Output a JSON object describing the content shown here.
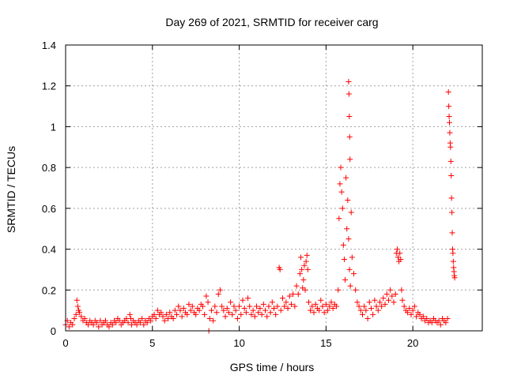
{
  "chart_data": {
    "type": "scatter",
    "title": "Day 269 of 2021, SRMTID for receiver carg",
    "xlabel": "GPS time / hours",
    "ylabel": "SRMTID / TECUs",
    "xlim": [
      0,
      24
    ],
    "ylim": [
      0,
      1.4
    ],
    "xticks": [
      0,
      5,
      10,
      15,
      20
    ],
    "xtick_labels": [
      "0",
      "5",
      "10",
      "15",
      "20"
    ],
    "yticks": [
      0,
      0.2,
      0.4,
      0.6,
      0.8,
      1.0,
      1.2,
      1.4
    ],
    "ytick_labels": [
      "0",
      "0.2",
      "0.4",
      "0.6",
      "0.8",
      "1",
      "1.2",
      "1.4"
    ],
    "grid": true,
    "marker": "+",
    "series": [
      {
        "name": "SRMTID",
        "color": "#ff0000",
        "points": [
          [
            0.0,
            0.03
          ],
          [
            0.1,
            0.05
          ],
          [
            0.2,
            0.02
          ],
          [
            0.3,
            0.04
          ],
          [
            0.4,
            0.03
          ],
          [
            0.5,
            0.06
          ],
          [
            0.6,
            0.08
          ],
          [
            0.65,
            0.15
          ],
          [
            0.7,
            0.12
          ],
          [
            0.75,
            0.1
          ],
          [
            0.8,
            0.09
          ],
          [
            0.9,
            0.07
          ],
          [
            1.0,
            0.05
          ],
          [
            1.1,
            0.06
          ],
          [
            1.2,
            0.04
          ],
          [
            1.3,
            0.03
          ],
          [
            1.4,
            0.05
          ],
          [
            1.5,
            0.04
          ],
          [
            1.6,
            0.03
          ],
          [
            1.7,
            0.05
          ],
          [
            1.8,
            0.04
          ],
          [
            1.9,
            0.02
          ],
          [
            2.0,
            0.05
          ],
          [
            2.1,
            0.03
          ],
          [
            2.2,
            0.04
          ],
          [
            2.3,
            0.05
          ],
          [
            2.4,
            0.03
          ],
          [
            2.5,
            0.02
          ],
          [
            2.6,
            0.04
          ],
          [
            2.7,
            0.03
          ],
          [
            2.8,
            0.05
          ],
          [
            2.9,
            0.04
          ],
          [
            3.0,
            0.06
          ],
          [
            3.1,
            0.05
          ],
          [
            3.2,
            0.03
          ],
          [
            3.3,
            0.04
          ],
          [
            3.4,
            0.05
          ],
          [
            3.5,
            0.06
          ],
          [
            3.6,
            0.04
          ],
          [
            3.7,
            0.08
          ],
          [
            3.75,
            0.06
          ],
          [
            3.8,
            0.03
          ],
          [
            3.9,
            0.05
          ],
          [
            4.0,
            0.04
          ],
          [
            4.1,
            0.03
          ],
          [
            4.2,
            0.05
          ],
          [
            4.3,
            0.04
          ],
          [
            4.4,
            0.06
          ],
          [
            4.5,
            0.03
          ],
          [
            4.6,
            0.05
          ],
          [
            4.7,
            0.04
          ],
          [
            4.8,
            0.06
          ],
          [
            4.9,
            0.05
          ],
          [
            5.0,
            0.07
          ],
          [
            5.1,
            0.08
          ],
          [
            5.2,
            0.06
          ],
          [
            5.3,
            0.1
          ],
          [
            5.4,
            0.08
          ],
          [
            5.5,
            0.09
          ],
          [
            5.6,
            0.07
          ],
          [
            5.7,
            0.05
          ],
          [
            5.8,
            0.08
          ],
          [
            5.9,
            0.06
          ],
          [
            6.0,
            0.09
          ],
          [
            6.1,
            0.07
          ],
          [
            6.2,
            0.06
          ],
          [
            6.3,
            0.1
          ],
          [
            6.4,
            0.08
          ],
          [
            6.5,
            0.12
          ],
          [
            6.6,
            0.1
          ],
          [
            6.7,
            0.07
          ],
          [
            6.8,
            0.11
          ],
          [
            6.9,
            0.09
          ],
          [
            7.0,
            0.08
          ],
          [
            7.1,
            0.13
          ],
          [
            7.2,
            0.1
          ],
          [
            7.3,
            0.12
          ],
          [
            7.4,
            0.09
          ],
          [
            7.5,
            0.08
          ],
          [
            7.6,
            0.11
          ],
          [
            7.7,
            0.1
          ],
          [
            7.8,
            0.13
          ],
          [
            7.9,
            0.12
          ],
          [
            8.0,
            0.08
          ],
          [
            8.1,
            0.17
          ],
          [
            8.2,
            0.14
          ],
          [
            8.25,
            0.0
          ],
          [
            8.3,
            0.06
          ],
          [
            8.4,
            0.1
          ],
          [
            8.5,
            0.05
          ],
          [
            8.6,
            0.12
          ],
          [
            8.7,
            0.09
          ],
          [
            8.8,
            0.18
          ],
          [
            8.9,
            0.2
          ],
          [
            9.0,
            0.12
          ],
          [
            9.1,
            0.1
          ],
          [
            9.2,
            0.07
          ],
          [
            9.3,
            0.11
          ],
          [
            9.4,
            0.09
          ],
          [
            9.5,
            0.14
          ],
          [
            9.6,
            0.08
          ],
          [
            9.7,
            0.12
          ],
          [
            9.8,
            0.1
          ],
          [
            9.9,
            0.06
          ],
          [
            10.0,
            0.12
          ],
          [
            10.1,
            0.08
          ],
          [
            10.2,
            0.15
          ],
          [
            10.3,
            0.11
          ],
          [
            10.4,
            0.09
          ],
          [
            10.5,
            0.16
          ],
          [
            10.6,
            0.12
          ],
          [
            10.7,
            0.08
          ],
          [
            10.8,
            0.1
          ],
          [
            10.9,
            0.07
          ],
          [
            11.0,
            0.12
          ],
          [
            11.1,
            0.09
          ],
          [
            11.2,
            0.11
          ],
          [
            11.3,
            0.08
          ],
          [
            11.4,
            0.13
          ],
          [
            11.5,
            0.1
          ],
          [
            11.6,
            0.07
          ],
          [
            11.7,
            0.12
          ],
          [
            11.8,
            0.09
          ],
          [
            11.9,
            0.14
          ],
          [
            12.0,
            0.11
          ],
          [
            12.1,
            0.08
          ],
          [
            12.2,
            0.12
          ],
          [
            12.3,
            0.31
          ],
          [
            12.35,
            0.3
          ],
          [
            12.4,
            0.1
          ],
          [
            12.5,
            0.16
          ],
          [
            12.6,
            0.12
          ],
          [
            12.7,
            0.14
          ],
          [
            12.8,
            0.11
          ],
          [
            12.9,
            0.17
          ],
          [
            13.0,
            0.13
          ],
          [
            13.1,
            0.18
          ],
          [
            13.2,
            0.12
          ],
          [
            13.3,
            0.22
          ],
          [
            13.4,
            0.18
          ],
          [
            13.5,
            0.28
          ],
          [
            13.55,
            0.36
          ],
          [
            13.6,
            0.3
          ],
          [
            13.65,
            0.21
          ],
          [
            13.7,
            0.25
          ],
          [
            13.75,
            0.32
          ],
          [
            13.8,
            0.2
          ],
          [
            13.85,
            0.34
          ],
          [
            13.9,
            0.37
          ],
          [
            13.95,
            0.3
          ],
          [
            14.0,
            0.14
          ],
          [
            14.1,
            0.1
          ],
          [
            14.2,
            0.12
          ],
          [
            14.3,
            0.09
          ],
          [
            14.4,
            0.13
          ],
          [
            14.5,
            0.11
          ],
          [
            14.6,
            0.1
          ],
          [
            14.7,
            0.15
          ],
          [
            14.8,
            0.12
          ],
          [
            14.9,
            0.09
          ],
          [
            15.0,
            0.13
          ],
          [
            15.1,
            0.1
          ],
          [
            15.2,
            0.12
          ],
          [
            15.3,
            0.14
          ],
          [
            15.4,
            0.11
          ],
          [
            15.5,
            0.13
          ],
          [
            15.6,
            0.12
          ],
          [
            15.7,
            0.2
          ],
          [
            15.75,
            0.55
          ],
          [
            15.8,
            0.72
          ],
          [
            15.85,
            0.8
          ],
          [
            15.9,
            0.68
          ],
          [
            15.95,
            0.6
          ],
          [
            16.0,
            0.42
          ],
          [
            16.05,
            0.35
          ],
          [
            16.1,
            0.25
          ],
          [
            16.15,
            0.75
          ],
          [
            16.2,
            0.5
          ],
          [
            16.25,
            0.64
          ],
          [
            16.3,
            0.45
          ],
          [
            16.35,
            0.3
          ],
          [
            16.4,
            0.22
          ],
          [
            16.45,
            0.58
          ],
          [
            16.5,
            0.36
          ],
          [
            16.6,
            0.28
          ],
          [
            16.7,
            0.2
          ],
          [
            16.8,
            0.14
          ],
          [
            16.9,
            0.12
          ],
          [
            17.0,
            0.1
          ],
          [
            17.1,
            0.08
          ],
          [
            17.2,
            0.12
          ],
          [
            17.3,
            0.1
          ],
          [
            17.4,
            0.06
          ],
          [
            17.5,
            0.14
          ],
          [
            17.6,
            0.11
          ],
          [
            17.7,
            0.08
          ],
          [
            17.8,
            0.15
          ],
          [
            17.9,
            0.12
          ],
          [
            18.0,
            0.1
          ],
          [
            18.1,
            0.14
          ],
          [
            18.2,
            0.12
          ],
          [
            18.3,
            0.16
          ],
          [
            18.4,
            0.13
          ],
          [
            18.5,
            0.18
          ],
          [
            18.6,
            0.15
          ],
          [
            18.7,
            0.2
          ],
          [
            18.8,
            0.17
          ],
          [
            18.9,
            0.14
          ],
          [
            19.0,
            0.18
          ],
          [
            19.05,
            0.38
          ],
          [
            19.1,
            0.4
          ],
          [
            19.15,
            0.36
          ],
          [
            19.2,
            0.34
          ],
          [
            19.25,
            0.38
          ],
          [
            19.3,
            0.35
          ],
          [
            19.35,
            0.2
          ],
          [
            19.4,
            0.15
          ],
          [
            19.5,
            0.12
          ],
          [
            19.6,
            0.1
          ],
          [
            19.7,
            0.09
          ],
          [
            19.8,
            0.11
          ],
          [
            19.9,
            0.08
          ],
          [
            20.0,
            0.1
          ],
          [
            20.1,
            0.12
          ],
          [
            20.2,
            0.07
          ],
          [
            20.3,
            0.09
          ],
          [
            20.4,
            0.08
          ],
          [
            20.5,
            0.06
          ],
          [
            20.6,
            0.07
          ],
          [
            20.7,
            0.05
          ],
          [
            20.8,
            0.06
          ],
          [
            20.9,
            0.04
          ],
          [
            21.0,
            0.05
          ],
          [
            21.1,
            0.04
          ],
          [
            21.2,
            0.06
          ],
          [
            21.3,
            0.05
          ],
          [
            21.4,
            0.04
          ],
          [
            21.5,
            0.05
          ],
          [
            21.6,
            0.03
          ],
          [
            21.7,
            0.06
          ],
          [
            21.8,
            0.05
          ],
          [
            21.9,
            0.04
          ],
          [
            22.0,
            0.06
          ],
          [
            16.3,
            1.22
          ],
          [
            16.32,
            1.16
          ],
          [
            16.34,
            1.05
          ],
          [
            16.36,
            0.95
          ],
          [
            16.38,
            0.84
          ],
          [
            22.05,
            1.17
          ],
          [
            22.07,
            1.1
          ],
          [
            22.09,
            1.05
          ],
          [
            22.11,
            1.02
          ],
          [
            22.13,
            0.97
          ],
          [
            22.15,
            0.92
          ],
          [
            22.17,
            0.9
          ],
          [
            22.19,
            0.83
          ],
          [
            22.21,
            0.76
          ],
          [
            22.23,
            0.65
          ],
          [
            22.25,
            0.58
          ],
          [
            22.27,
            0.48
          ],
          [
            22.29,
            0.4
          ],
          [
            22.31,
            0.38
          ],
          [
            22.33,
            0.34
          ],
          [
            22.35,
            0.31
          ],
          [
            22.37,
            0.29
          ],
          [
            22.39,
            0.27
          ],
          [
            22.41,
            0.26
          ]
        ]
      }
    ]
  }
}
